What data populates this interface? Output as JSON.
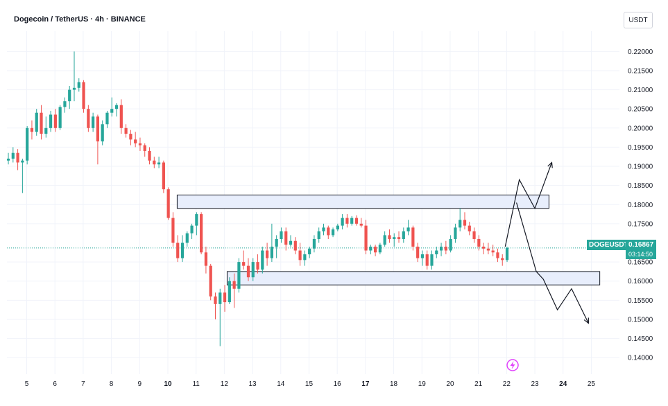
{
  "header": {
    "title": "Dogecoin / TetherUS · 4h · BINANCE",
    "currency_button": "USDT"
  },
  "price_tag": {
    "symbol": "DOGEUSDT",
    "price": "0.16867",
    "countdown": "03:14:50",
    "color": "#26a69a"
  },
  "colors": {
    "up": "#26a69a",
    "down": "#ef5350",
    "zone_fill": "#e8eefc",
    "zone_border": "#131722",
    "arrows": "#131722"
  },
  "icons": {
    "bottom_marker": "lightning-icon"
  },
  "chart_data": {
    "type": "candlestick",
    "title": "Dogecoin / TetherUS · 4h · BINANCE",
    "x_ticks": [
      {
        "label": "5",
        "day": 5,
        "bold": false
      },
      {
        "label": "6",
        "day": 6,
        "bold": false
      },
      {
        "label": "7",
        "day": 7,
        "bold": false
      },
      {
        "label": "8",
        "day": 8,
        "bold": false
      },
      {
        "label": "9",
        "day": 9,
        "bold": false
      },
      {
        "label": "10",
        "day": 10,
        "bold": true
      },
      {
        "label": "11",
        "day": 11,
        "bold": false
      },
      {
        "label": "12",
        "day": 12,
        "bold": false
      },
      {
        "label": "13",
        "day": 13,
        "bold": false
      },
      {
        "label": "14",
        "day": 14,
        "bold": false
      },
      {
        "label": "15",
        "day": 15,
        "bold": false
      },
      {
        "label": "16",
        "day": 16,
        "bold": false
      },
      {
        "label": "17",
        "day": 17,
        "bold": true
      },
      {
        "label": "18",
        "day": 18,
        "bold": false
      },
      {
        "label": "19",
        "day": 19,
        "bold": false
      },
      {
        "label": "20",
        "day": 20,
        "bold": false
      },
      {
        "label": "21",
        "day": 21,
        "bold": false
      },
      {
        "label": "22",
        "day": 22,
        "bold": false
      },
      {
        "label": "23",
        "day": 23,
        "bold": false
      },
      {
        "label": "24",
        "day": 24,
        "bold": true
      },
      {
        "label": "25",
        "day": 25,
        "bold": false
      }
    ],
    "y_ticks": [
      "0.22000",
      "0.21500",
      "0.21000",
      "0.20500",
      "0.20000",
      "0.19500",
      "0.19000",
      "0.18500",
      "0.18000",
      "0.17500",
      "0.16500",
      "0.16000",
      "0.15500",
      "0.15000",
      "0.14500",
      "0.14000"
    ],
    "y_range": [
      0.1375,
      0.2235
    ],
    "x_range": [
      4.3,
      25.8
    ],
    "current_price": 0.16867,
    "price_line": "dotted",
    "candle_start_day": 4.35,
    "candles_per_day": 6,
    "candles": [
      [
        0.1915,
        0.1935,
        0.1905,
        0.192
      ],
      [
        0.192,
        0.195,
        0.191,
        0.1935
      ],
      [
        0.1935,
        0.1945,
        0.189,
        0.191
      ],
      [
        0.191,
        0.192,
        0.183,
        0.1915
      ],
      [
        0.1915,
        0.2005,
        0.1905,
        0.2
      ],
      [
        0.2,
        0.202,
        0.197,
        0.199
      ],
      [
        0.199,
        0.205,
        0.198,
        0.204
      ],
      [
        0.204,
        0.206,
        0.197,
        0.1985
      ],
      [
        0.1985,
        0.203,
        0.1975,
        0.2
      ],
      [
        0.2,
        0.2045,
        0.199,
        0.2035
      ],
      [
        0.2035,
        0.205,
        0.199,
        0.2
      ],
      [
        0.2,
        0.206,
        0.1995,
        0.2055
      ],
      [
        0.2055,
        0.208,
        0.204,
        0.207
      ],
      [
        0.207,
        0.211,
        0.205,
        0.21
      ],
      [
        0.21,
        0.22,
        0.207,
        0.2105
      ],
      [
        0.2105,
        0.213,
        0.2095,
        0.212
      ],
      [
        0.212,
        0.2125,
        0.204,
        0.205
      ],
      [
        0.205,
        0.206,
        0.199,
        0.2
      ],
      [
        0.2,
        0.204,
        0.199,
        0.203
      ],
      [
        0.203,
        0.2035,
        0.1905,
        0.1965
      ],
      [
        0.1965,
        0.202,
        0.1955,
        0.201
      ],
      [
        0.201,
        0.2045,
        0.2,
        0.204
      ],
      [
        0.204,
        0.208,
        0.203,
        0.205
      ],
      [
        0.205,
        0.2065,
        0.203,
        0.206
      ],
      [
        0.206,
        0.2075,
        0.1985,
        0.2
      ],
      [
        0.2,
        0.201,
        0.1975,
        0.1985
      ],
      [
        0.1985,
        0.1995,
        0.1955,
        0.197
      ],
      [
        0.197,
        0.199,
        0.195,
        0.196
      ],
      [
        0.196,
        0.1975,
        0.194,
        0.1955
      ],
      [
        0.1955,
        0.196,
        0.1925,
        0.194
      ],
      [
        0.194,
        0.195,
        0.1905,
        0.1915
      ],
      [
        0.1915,
        0.1925,
        0.1895,
        0.1905
      ],
      [
        0.1905,
        0.1925,
        0.1895,
        0.191
      ],
      [
        0.191,
        0.1915,
        0.183,
        0.184
      ],
      [
        0.184,
        0.1845,
        0.176,
        0.1765
      ],
      [
        0.1765,
        0.178,
        0.169,
        0.17
      ],
      [
        0.17,
        0.172,
        0.165,
        0.166
      ],
      [
        0.166,
        0.172,
        0.165,
        0.17
      ],
      [
        0.17,
        0.173,
        0.169,
        0.1725
      ],
      [
        0.1725,
        0.175,
        0.171,
        0.1745
      ],
      [
        0.1745,
        0.178,
        0.172,
        0.1775
      ],
      [
        0.1775,
        0.178,
        0.167,
        0.1675
      ],
      [
        0.1675,
        0.169,
        0.162,
        0.164
      ],
      [
        0.164,
        0.1645,
        0.155,
        0.156
      ],
      [
        0.156,
        0.157,
        0.15,
        0.154
      ],
      [
        0.154,
        0.158,
        0.143,
        0.157
      ],
      [
        0.157,
        0.159,
        0.152,
        0.1545
      ],
      [
        0.1545,
        0.161,
        0.154,
        0.16
      ],
      [
        0.16,
        0.162,
        0.153,
        0.158
      ],
      [
        0.158,
        0.166,
        0.157,
        0.165
      ],
      [
        0.165,
        0.168,
        0.163,
        0.164
      ],
      [
        0.164,
        0.166,
        0.16,
        0.161
      ],
      [
        0.161,
        0.166,
        0.16,
        0.165
      ],
      [
        0.165,
        0.167,
        0.162,
        0.163
      ],
      [
        0.163,
        0.169,
        0.162,
        0.168
      ],
      [
        0.168,
        0.17,
        0.164,
        0.166
      ],
      [
        0.166,
        0.175,
        0.165,
        0.169
      ],
      [
        0.169,
        0.172,
        0.166,
        0.171
      ],
      [
        0.171,
        0.174,
        0.17,
        0.173
      ],
      [
        0.173,
        0.174,
        0.168,
        0.1695
      ],
      [
        0.1695,
        0.172,
        0.169,
        0.1705
      ],
      [
        0.1705,
        0.1715,
        0.167,
        0.168
      ],
      [
        0.168,
        0.17,
        0.164,
        0.1655
      ],
      [
        0.1655,
        0.168,
        0.164,
        0.167
      ],
      [
        0.167,
        0.169,
        0.166,
        0.1685
      ],
      [
        0.1685,
        0.172,
        0.1675,
        0.171
      ],
      [
        0.171,
        0.174,
        0.17,
        0.173
      ],
      [
        0.173,
        0.175,
        0.172,
        0.174
      ],
      [
        0.174,
        0.1745,
        0.171,
        0.172
      ],
      [
        0.172,
        0.174,
        0.1715,
        0.1735
      ],
      [
        0.1735,
        0.175,
        0.173,
        0.1745
      ],
      [
        0.1745,
        0.1775,
        0.1735,
        0.1765
      ],
      [
        0.1765,
        0.1775,
        0.174,
        0.175
      ],
      [
        0.175,
        0.177,
        0.1745,
        0.1765
      ],
      [
        0.1765,
        0.1772,
        0.1745,
        0.175
      ],
      [
        0.175,
        0.1765,
        0.174,
        0.1745
      ],
      [
        0.1745,
        0.176,
        0.167,
        0.168
      ],
      [
        0.168,
        0.1695,
        0.167,
        0.169
      ],
      [
        0.169,
        0.1695,
        0.1665,
        0.1675
      ],
      [
        0.1675,
        0.17,
        0.167,
        0.1695
      ],
      [
        0.1695,
        0.173,
        0.169,
        0.172
      ],
      [
        0.172,
        0.1735,
        0.17,
        0.171
      ],
      [
        0.171,
        0.1725,
        0.169,
        0.1715
      ],
      [
        0.1715,
        0.173,
        0.17,
        0.171
      ],
      [
        0.171,
        0.174,
        0.17,
        0.173
      ],
      [
        0.173,
        0.176,
        0.172,
        0.174
      ],
      [
        0.174,
        0.1745,
        0.168,
        0.169
      ],
      [
        0.169,
        0.17,
        0.165,
        0.166
      ],
      [
        0.166,
        0.168,
        0.164,
        0.167
      ],
      [
        0.167,
        0.168,
        0.163,
        0.164
      ],
      [
        0.164,
        0.168,
        0.163,
        0.167
      ],
      [
        0.167,
        0.169,
        0.166,
        0.168
      ],
      [
        0.168,
        0.17,
        0.1665,
        0.169
      ],
      [
        0.169,
        0.1705,
        0.167,
        0.168
      ],
      [
        0.168,
        0.172,
        0.1675,
        0.171
      ],
      [
        0.171,
        0.175,
        0.17,
        0.174
      ],
      [
        0.174,
        0.179,
        0.173,
        0.176
      ],
      [
        0.176,
        0.178,
        0.1735,
        0.1745
      ],
      [
        0.1745,
        0.1755,
        0.172,
        0.173
      ],
      [
        0.173,
        0.174,
        0.17,
        0.171
      ],
      [
        0.171,
        0.172,
        0.168,
        0.169
      ],
      [
        0.169,
        0.17,
        0.167,
        0.1685
      ],
      [
        0.1685,
        0.17,
        0.167,
        0.168
      ],
      [
        0.168,
        0.1695,
        0.1665,
        0.1675
      ],
      [
        0.1675,
        0.1685,
        0.165,
        0.166
      ],
      [
        0.166,
        0.167,
        0.164,
        0.1655
      ],
      [
        0.1655,
        0.169,
        0.165,
        0.1687
      ]
    ],
    "zones": [
      {
        "name": "resistance-zone",
        "x_start": 10.33,
        "x_end": 23.5,
        "y_low": 0.179,
        "y_high": 0.1825
      },
      {
        "name": "support-zone",
        "x_start": 12.1,
        "x_end": 25.3,
        "y_low": 0.159,
        "y_high": 0.1625
      }
    ],
    "projection_paths": [
      {
        "name": "bullish-projection",
        "points": [
          [
            21.95,
            0.169
          ],
          [
            22.45,
            0.1865
          ],
          [
            23.0,
            0.179
          ],
          [
            23.6,
            0.191
          ]
        ]
      },
      {
        "name": "bearish-projection",
        "points": [
          [
            22.35,
            0.1805
          ],
          [
            23.05,
            0.1625
          ],
          [
            23.3,
            0.1605
          ],
          [
            23.8,
            0.1525
          ],
          [
            24.3,
            0.158
          ],
          [
            24.9,
            0.149
          ]
        ]
      }
    ]
  }
}
